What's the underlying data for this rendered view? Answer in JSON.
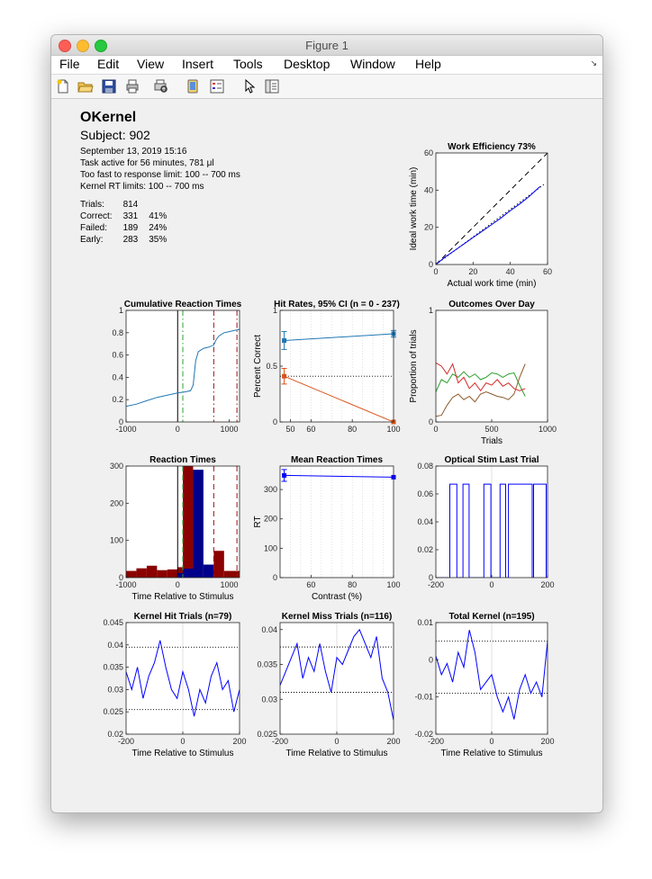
{
  "window": {
    "title": "Figure 1"
  },
  "menu": {
    "items": [
      "File",
      "Edit",
      "View",
      "Insert",
      "Tools",
      "Desktop",
      "Window",
      "Help"
    ]
  },
  "toolbar": {
    "buttons": [
      "new-figure-icon",
      "open-file-icon",
      "save-icon",
      "print-icon",
      "print-preview-icon",
      "link-icon",
      "insert-legend-icon",
      "edit-plot-arrow-icon",
      "property-inspector-icon"
    ]
  },
  "header": {
    "title": "OKernel",
    "subject": "Subject: 902",
    "lines": [
      "September 13, 2019 15:16",
      "Task active for 56 minutes, 781 μl",
      "Too fast to response limit: 100 -- 700 ms",
      "Kernel RT limits: 100 -- 700 ms"
    ]
  },
  "stats": [
    {
      "label": "Trials:",
      "count": "814",
      "pct": ""
    },
    {
      "label": "Correct:",
      "count": "331",
      "pct": "41%"
    },
    {
      "label": "Failed:",
      "count": "189",
      "pct": "24%"
    },
    {
      "label": "Early:",
      "count": "283",
      "pct": "35%"
    }
  ],
  "chart_data": [
    {
      "id": "work-efficiency",
      "type": "line",
      "title": "Work Efficiency 73%",
      "xlabel": "Actual work time (min)",
      "ylabel": "Ideal work time (min)",
      "xlim": [
        0,
        60
      ],
      "ylim": [
        0,
        60
      ],
      "xticks": [
        0,
        20,
        40,
        60
      ],
      "yticks": [
        0,
        20,
        40,
        60
      ],
      "series": [
        {
          "style": "dashed",
          "color": "#000000",
          "x": [
            0,
            60
          ],
          "y": [
            0,
            60
          ]
        },
        {
          "style": "dotted",
          "color": "#000000",
          "x": [
            0,
            58
          ],
          "y": [
            0,
            43
          ]
        },
        {
          "style": "solid",
          "color": "#0000ff",
          "x": [
            0,
            5,
            10,
            15,
            20,
            25,
            30,
            35,
            40,
            45,
            50,
            56
          ],
          "y": [
            0,
            4,
            7.5,
            11,
            14.5,
            18,
            21.5,
            25,
            29,
            32.5,
            36.5,
            42
          ]
        }
      ]
    },
    {
      "id": "cumulative-rt",
      "type": "line",
      "title": "Cumulative Reaction Times",
      "xlim": [
        -1000,
        1200
      ],
      "ylim": [
        0,
        1
      ],
      "xticks": [
        -1000,
        0,
        1000
      ],
      "yticks": [
        0,
        0.2,
        0.4,
        0.6,
        0.8,
        1
      ],
      "vlines": [
        {
          "x": 0,
          "color": "#000000",
          "style": "solid"
        },
        {
          "x": 100,
          "color": "#2ca02c",
          "style": "dashdot"
        },
        {
          "x": 700,
          "color": "#a01010",
          "style": "dashdot"
        },
        {
          "x": 1150,
          "color": "#a01010",
          "style": "dashdot"
        }
      ],
      "series": [
        {
          "color": "#1f77b4",
          "x": [
            -1000,
            -800,
            -600,
            -400,
            -200,
            0,
            150,
            250,
            300,
            350,
            400,
            500,
            600,
            700,
            750,
            800,
            900,
            1000,
            1100,
            1200
          ],
          "y": [
            0.14,
            0.16,
            0.19,
            0.22,
            0.24,
            0.26,
            0.27,
            0.28,
            0.33,
            0.55,
            0.63,
            0.66,
            0.67,
            0.69,
            0.74,
            0.77,
            0.8,
            0.81,
            0.82,
            0.83
          ]
        }
      ]
    },
    {
      "id": "hit-rates",
      "type": "line",
      "title": "Hit Rates, 95% CI (n = 0 - 237)",
      "ylabel": "Percent Correct",
      "xlim": [
        45,
        100
      ],
      "ylim": [
        0,
        1
      ],
      "xticks": [
        50,
        60,
        80,
        100
      ],
      "yticks": [
        0,
        0.5,
        1
      ],
      "hline": 0.41,
      "series": [
        {
          "color": "#1f77b4",
          "marker": "square",
          "x": [
            47,
            100
          ],
          "y": [
            0.73,
            0.79
          ],
          "err": [
            0.08,
            0.03
          ]
        },
        {
          "color": "#d95319",
          "marker": "square",
          "x": [
            47,
            100
          ],
          "y": [
            0.41,
            0.0
          ],
          "err": [
            0.07,
            0.0
          ]
        }
      ]
    },
    {
      "id": "outcomes-over-day",
      "type": "line",
      "title": "Outcomes Over Day",
      "xlabel": "Trials",
      "ylabel": "Proportion of trials",
      "xlim": [
        0,
        1000
      ],
      "ylim": [
        0,
        1
      ],
      "xticks": [
        0,
        500,
        1000
      ],
      "yticks": [
        0,
        1
      ],
      "series": [
        {
          "name": "correct",
          "color": "#2ca02c",
          "x": [
            0,
            50,
            100,
            150,
            200,
            250,
            300,
            350,
            400,
            450,
            500,
            550,
            600,
            650,
            700,
            750,
            800
          ],
          "y": [
            0.27,
            0.38,
            0.35,
            0.43,
            0.4,
            0.45,
            0.4,
            0.43,
            0.38,
            0.4,
            0.44,
            0.43,
            0.4,
            0.43,
            0.44,
            0.33,
            0.23
          ]
        },
        {
          "name": "failed",
          "color": "#d62728",
          "x": [
            0,
            50,
            100,
            150,
            200,
            250,
            300,
            350,
            400,
            450,
            500,
            550,
            600,
            650,
            700,
            750,
            800
          ],
          "y": [
            0.53,
            0.5,
            0.43,
            0.52,
            0.35,
            0.4,
            0.3,
            0.35,
            0.28,
            0.35,
            0.33,
            0.38,
            0.32,
            0.35,
            0.3,
            0.28,
            0.3
          ]
        },
        {
          "name": "early",
          "color": "#8c5a2b",
          "x": [
            0,
            50,
            100,
            150,
            200,
            250,
            300,
            350,
            400,
            450,
            500,
            550,
            600,
            650,
            700,
            750,
            800
          ],
          "y": [
            0.05,
            0.06,
            0.15,
            0.22,
            0.25,
            0.2,
            0.23,
            0.18,
            0.25,
            0.27,
            0.25,
            0.23,
            0.22,
            0.2,
            0.25,
            0.4,
            0.52
          ]
        }
      ]
    },
    {
      "id": "reaction-times",
      "type": "bar",
      "title": "Reaction Times",
      "xlabel": "Time Relative to Stimulus",
      "xlim": [
        -1000,
        1200
      ],
      "ylim": [
        0,
        300
      ],
      "xticks": [
        -1000,
        0,
        1000
      ],
      "yticks": [
        0,
        100,
        200,
        300
      ],
      "vlines": [
        {
          "x": 0,
          "color": "#000000",
          "style": "solid"
        },
        {
          "x": 100,
          "color": "#2ca02c",
          "style": "dashed"
        },
        {
          "x": 700,
          "color": "#a01010",
          "style": "dashed"
        },
        {
          "x": 1150,
          "color": "#a01010",
          "style": "dashed"
        }
      ],
      "bins": [
        {
          "x0": -1000,
          "x1": -800,
          "early": 18,
          "correct": 0
        },
        {
          "x0": -800,
          "x1": -600,
          "early": 25,
          "correct": 0
        },
        {
          "x0": -600,
          "x1": -400,
          "early": 32,
          "correct": 0
        },
        {
          "x0": -400,
          "x1": -200,
          "early": 20,
          "correct": 0
        },
        {
          "x0": -200,
          "x1": 0,
          "early": 22,
          "correct": 0
        },
        {
          "x0": 0,
          "x1": 100,
          "early": 28,
          "correct": 12
        },
        {
          "x0": 100,
          "x1": 300,
          "early": 300,
          "correct": 24
        },
        {
          "x0": 300,
          "x1": 500,
          "early": 0,
          "correct": 290
        },
        {
          "x0": 500,
          "x1": 700,
          "early": 30,
          "correct": 35
        },
        {
          "x0": 700,
          "x1": 900,
          "early": 72,
          "correct": 0
        },
        {
          "x0": 900,
          "x1": 1200,
          "early": 18,
          "correct": 0
        }
      ]
    },
    {
      "id": "mean-reaction-times",
      "type": "line",
      "title": "Mean Reaction Times",
      "xlabel": "Contrast (%)",
      "ylabel": "RT",
      "xlim": [
        45,
        100
      ],
      "ylim": [
        0,
        380
      ],
      "xticks": [
        60,
        80,
        100
      ],
      "yticks": [
        0,
        100,
        200,
        300
      ],
      "series": [
        {
          "color": "#0000ff",
          "marker": "square",
          "x": [
            47,
            100
          ],
          "y": [
            348,
            342
          ],
          "err": [
            20,
            0
          ]
        }
      ]
    },
    {
      "id": "optical-stim",
      "type": "line",
      "title": "Optical Stim Last Trial",
      "xlim": [
        -200,
        200
      ],
      "ylim": [
        0,
        0.08
      ],
      "xticks": [
        -200,
        0,
        200
      ],
      "yticks": [
        0,
        0.02,
        0.04,
        0.06,
        0.08
      ],
      "series": [
        {
          "color": "#0000ff",
          "x": [
            -200,
            -150,
            -150,
            -125,
            -125,
            -103,
            -103,
            -81,
            -81,
            -28,
            -28,
            -3,
            -3,
            30,
            30,
            50,
            50,
            60,
            60,
            145,
            145,
            150,
            150,
            195,
            195,
            200
          ],
          "y": [
            0,
            0,
            0.067,
            0.067,
            0,
            0,
            0.067,
            0.067,
            0,
            0,
            0.067,
            0.067,
            0,
            0,
            0.067,
            0.067,
            0,
            0,
            0.067,
            0.067,
            0,
            0,
            0.067,
            0.067,
            0,
            0
          ]
        }
      ]
    },
    {
      "id": "kernel-hit",
      "type": "line",
      "title": "Kernel Hit Trials (n=79)",
      "xlabel": "Time Relative to Stimulus",
      "xlim": [
        -200,
        200
      ],
      "ylim": [
        0.02,
        0.045
      ],
      "xticks": [
        -200,
        0,
        200
      ],
      "yticks": [
        0.02,
        0.025,
        0.03,
        0.035,
        0.04,
        0.045
      ],
      "hlines": [
        0.0395,
        0.0255
      ],
      "series": [
        {
          "color": "#0000ff",
          "x": [
            -200,
            -180,
            -160,
            -140,
            -120,
            -100,
            -80,
            -60,
            -40,
            -20,
            0,
            20,
            40,
            60,
            80,
            100,
            120,
            140,
            160,
            180,
            200
          ],
          "y": [
            0.034,
            0.03,
            0.035,
            0.028,
            0.033,
            0.036,
            0.041,
            0.035,
            0.03,
            0.028,
            0.034,
            0.03,
            0.024,
            0.03,
            0.027,
            0.033,
            0.036,
            0.03,
            0.032,
            0.025,
            0.03
          ]
        }
      ]
    },
    {
      "id": "kernel-miss",
      "type": "line",
      "title": "Kernel Miss Trials (n=116)",
      "xlabel": "Time Relative to Stimulus",
      "xlim": [
        -200,
        200
      ],
      "ylim": [
        0.025,
        0.041
      ],
      "xticks": [
        -200,
        0,
        200
      ],
      "yticks": [
        0.025,
        0.03,
        0.035,
        0.04
      ],
      "hlines": [
        0.0375,
        0.031
      ],
      "series": [
        {
          "color": "#0000ff",
          "x": [
            -200,
            -180,
            -160,
            -140,
            -120,
            -100,
            -80,
            -60,
            -40,
            -20,
            0,
            20,
            40,
            60,
            80,
            100,
            120,
            140,
            160,
            180,
            200
          ],
          "y": [
            0.032,
            0.034,
            0.036,
            0.038,
            0.033,
            0.036,
            0.034,
            0.038,
            0.034,
            0.031,
            0.036,
            0.035,
            0.037,
            0.039,
            0.04,
            0.038,
            0.036,
            0.039,
            0.033,
            0.031,
            0.027
          ]
        }
      ]
    },
    {
      "id": "total-kernel",
      "type": "line",
      "title": "Total Kernel (n=195)",
      "xlabel": "Time Relative to Stimulus",
      "xlim": [
        -200,
        200
      ],
      "ylim": [
        -0.02,
        0.01
      ],
      "xticks": [
        -200,
        0,
        200
      ],
      "yticks": [
        -0.02,
        -0.01,
        0,
        0.01
      ],
      "hlines": [
        0.005,
        -0.009
      ],
      "series": [
        {
          "color": "#0000ff",
          "x": [
            -200,
            -180,
            -160,
            -140,
            -120,
            -100,
            -80,
            -60,
            -40,
            -20,
            0,
            20,
            40,
            60,
            80,
            100,
            120,
            140,
            160,
            180,
            200
          ],
          "y": [
            0.001,
            -0.004,
            -0.001,
            -0.006,
            0.002,
            -0.002,
            0.008,
            0.002,
            -0.008,
            -0.006,
            -0.004,
            -0.01,
            -0.014,
            -0.01,
            -0.016,
            -0.008,
            -0.004,
            -0.009,
            -0.006,
            -0.01,
            0.005
          ]
        }
      ]
    }
  ]
}
